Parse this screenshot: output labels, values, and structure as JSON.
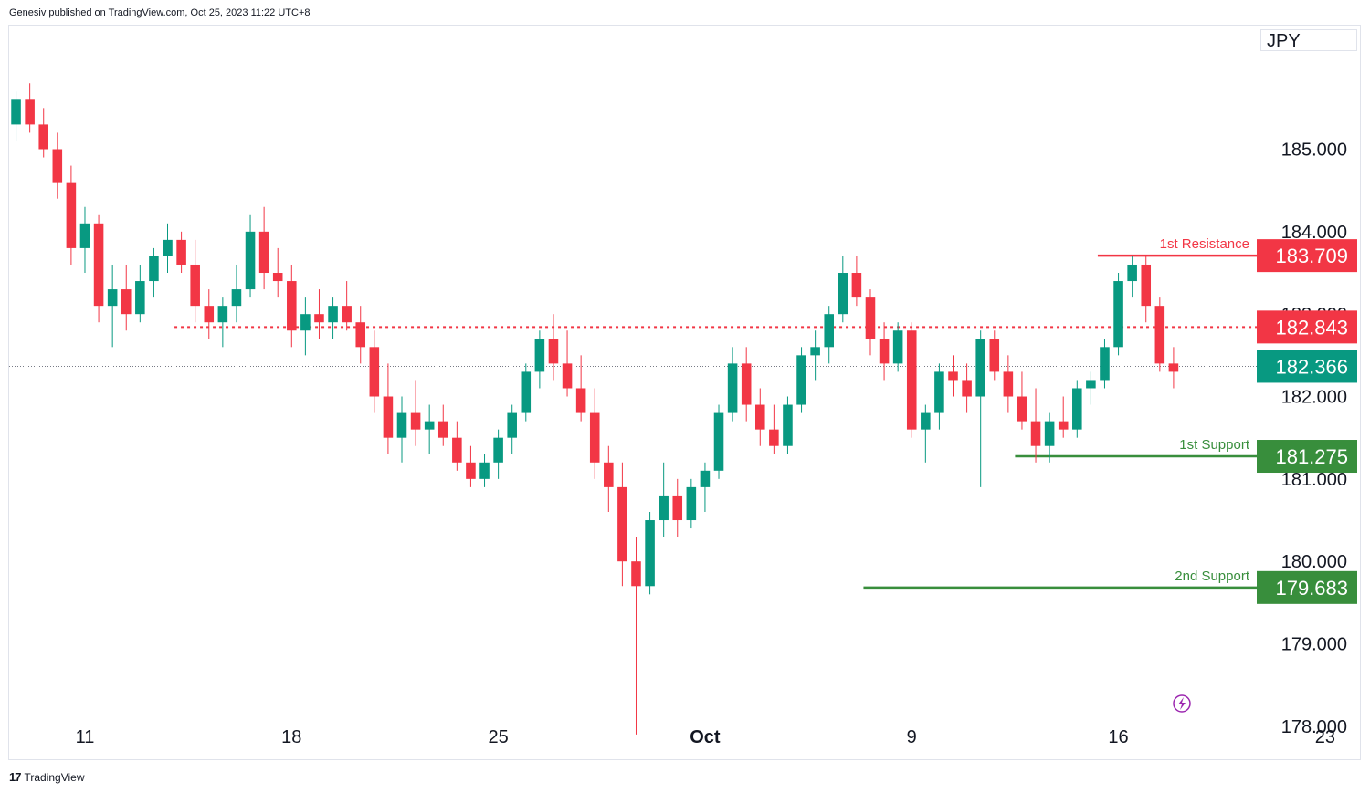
{
  "header": {
    "text": "Genesiv published on TradingView.com, Oct 25, 2023 11:22 UTC+8"
  },
  "currency": "JPY",
  "footer": {
    "logo": "17",
    "brand": "TradingView"
  },
  "colors": {
    "up": "#089981",
    "down": "#f23645",
    "support": "#388e3c",
    "resistance": "#f23645",
    "last": "#089981",
    "grid_text": "#131722"
  },
  "chart_data": {
    "type": "candlestick",
    "y_ticks": [
      "185.000",
      "184.000",
      "183.000",
      "182.000",
      "181.000",
      "180.000",
      "179.000",
      "178.000"
    ],
    "ylim": [
      177.6,
      186.5
    ],
    "x_ticks": [
      {
        "label": "11",
        "index": 5
      },
      {
        "label": "18",
        "index": 20
      },
      {
        "label": "25",
        "index": 35
      },
      {
        "label": "Oct",
        "index": 50,
        "bold": true
      },
      {
        "label": "9",
        "index": 65
      },
      {
        "label": "16",
        "index": 80
      },
      {
        "label": "23",
        "index": 95
      }
    ],
    "levels": [
      {
        "name": "1st Resistance",
        "value": 183.709,
        "label": "183.709",
        "style": "solid",
        "color": "#f23645",
        "from_index": 78.5
      },
      {
        "name": "",
        "value": 182.843,
        "label": "182.843",
        "style": "dotted",
        "color": "#f23645",
        "from_index": 11.5
      },
      {
        "name": "1st Support",
        "value": 181.275,
        "label": "181.275",
        "style": "solid",
        "color": "#388e3c",
        "from_index": 72.5
      },
      {
        "name": "2nd Support",
        "value": 179.683,
        "label": "179.683",
        "style": "solid",
        "color": "#388e3c",
        "from_index": 61.5
      }
    ],
    "last_price": {
      "value": 182.366,
      "label": "182.366"
    },
    "candles": [
      [
        185.3,
        185.7,
        185.1,
        185.6
      ],
      [
        185.6,
        185.8,
        185.2,
        185.3
      ],
      [
        185.3,
        185.5,
        184.9,
        185.0
      ],
      [
        185.0,
        185.2,
        184.4,
        184.6
      ],
      [
        184.6,
        184.8,
        183.6,
        183.8
      ],
      [
        183.8,
        184.3,
        183.5,
        184.1
      ],
      [
        184.1,
        184.2,
        182.9,
        183.1
      ],
      [
        183.1,
        183.6,
        182.6,
        183.3
      ],
      [
        183.3,
        183.6,
        182.8,
        183.0
      ],
      [
        183.0,
        183.6,
        182.9,
        183.4
      ],
      [
        183.4,
        183.8,
        183.2,
        183.7
      ],
      [
        183.7,
        184.1,
        183.5,
        183.9
      ],
      [
        183.9,
        184.0,
        183.5,
        183.6
      ],
      [
        183.6,
        183.9,
        182.9,
        183.1
      ],
      [
        183.1,
        183.3,
        182.7,
        182.9
      ],
      [
        182.9,
        183.2,
        182.6,
        183.1
      ],
      [
        183.1,
        183.6,
        182.9,
        183.3
      ],
      [
        183.3,
        184.2,
        183.2,
        184.0
      ],
      [
        184.0,
        184.3,
        183.3,
        183.5
      ],
      [
        183.5,
        183.8,
        183.2,
        183.4
      ],
      [
        183.4,
        183.6,
        182.6,
        182.8
      ],
      [
        182.8,
        183.2,
        182.5,
        183.0
      ],
      [
        183.0,
        183.3,
        182.7,
        182.9
      ],
      [
        182.9,
        183.2,
        182.7,
        183.1
      ],
      [
        183.1,
        183.4,
        182.8,
        182.9
      ],
      [
        182.9,
        183.1,
        182.4,
        182.6
      ],
      [
        182.6,
        182.8,
        181.8,
        182.0
      ],
      [
        182.0,
        182.4,
        181.3,
        181.5
      ],
      [
        181.5,
        182.0,
        181.2,
        181.8
      ],
      [
        181.8,
        182.2,
        181.4,
        181.6
      ],
      [
        181.6,
        181.9,
        181.3,
        181.7
      ],
      [
        181.7,
        181.9,
        181.4,
        181.5
      ],
      [
        181.5,
        181.7,
        181.1,
        181.2
      ],
      [
        181.2,
        181.4,
        180.9,
        181.0
      ],
      [
        181.0,
        181.3,
        180.9,
        181.2
      ],
      [
        181.2,
        181.6,
        181.0,
        181.5
      ],
      [
        181.5,
        181.9,
        181.3,
        181.8
      ],
      [
        181.8,
        182.4,
        181.7,
        182.3
      ],
      [
        182.3,
        182.8,
        182.1,
        182.7
      ],
      [
        182.7,
        183.0,
        182.2,
        182.4
      ],
      [
        182.4,
        182.8,
        182.0,
        182.1
      ],
      [
        182.1,
        182.5,
        181.7,
        181.8
      ],
      [
        181.8,
        182.1,
        181.0,
        181.2
      ],
      [
        181.2,
        181.4,
        180.6,
        180.9
      ],
      [
        180.9,
        181.2,
        179.7,
        180.0
      ],
      [
        180.0,
        180.3,
        177.9,
        179.7
      ],
      [
        179.7,
        180.6,
        179.6,
        180.5
      ],
      [
        180.5,
        181.2,
        180.3,
        180.8
      ],
      [
        180.8,
        181.0,
        180.3,
        180.5
      ],
      [
        180.5,
        181.0,
        180.4,
        180.9
      ],
      [
        180.9,
        181.2,
        180.6,
        181.1
      ],
      [
        181.1,
        181.9,
        181.0,
        181.8
      ],
      [
        181.8,
        182.6,
        181.7,
        182.4
      ],
      [
        182.4,
        182.6,
        181.7,
        181.9
      ],
      [
        181.9,
        182.1,
        181.4,
        181.6
      ],
      [
        181.6,
        181.9,
        181.3,
        181.4
      ],
      [
        181.4,
        182.0,
        181.3,
        181.9
      ],
      [
        181.9,
        182.6,
        181.8,
        182.5
      ],
      [
        182.5,
        182.8,
        182.2,
        182.6
      ],
      [
        182.6,
        183.1,
        182.4,
        183.0
      ],
      [
        183.0,
        183.7,
        182.9,
        183.5
      ],
      [
        183.5,
        183.7,
        183.1,
        183.2
      ],
      [
        183.2,
        183.3,
        182.5,
        182.7
      ],
      [
        182.7,
        182.9,
        182.2,
        182.4
      ],
      [
        182.4,
        182.9,
        182.3,
        182.8
      ],
      [
        182.8,
        182.9,
        181.5,
        181.6
      ],
      [
        181.6,
        181.9,
        181.2,
        181.8
      ],
      [
        181.8,
        182.4,
        181.6,
        182.3
      ],
      [
        182.3,
        182.5,
        182.0,
        182.2
      ],
      [
        182.2,
        182.4,
        181.8,
        182.0
      ],
      [
        182.0,
        182.8,
        180.9,
        182.7
      ],
      [
        182.7,
        182.8,
        182.2,
        182.3
      ],
      [
        182.3,
        182.5,
        181.8,
        182.0
      ],
      [
        182.0,
        182.3,
        181.6,
        181.7
      ],
      [
        181.7,
        182.1,
        181.2,
        181.4
      ],
      [
        181.4,
        181.8,
        181.2,
        181.7
      ],
      [
        181.7,
        182.0,
        181.5,
        181.6
      ],
      [
        181.6,
        182.2,
        181.5,
        182.1
      ],
      [
        182.1,
        182.3,
        181.9,
        182.2
      ],
      [
        182.2,
        182.7,
        182.1,
        182.6
      ],
      [
        182.6,
        183.5,
        182.5,
        183.4
      ],
      [
        183.4,
        183.7,
        183.2,
        183.6
      ],
      [
        183.6,
        183.7,
        182.9,
        183.1
      ],
      [
        183.1,
        183.2,
        182.3,
        182.4
      ],
      [
        182.4,
        182.6,
        182.1,
        182.3
      ]
    ]
  }
}
